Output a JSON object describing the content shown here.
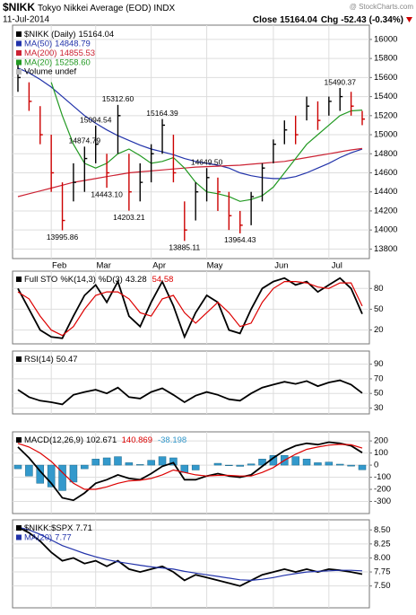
{
  "chart_data": [
    {
      "type": "ohlc",
      "symbol": "$NIKK",
      "title": "Tokyo Nikkei Average (EOD) INDX",
      "date": "11-Jul-2014",
      "source": "@ StockCharts.com",
      "close_label": "Close",
      "change_label": "Chg",
      "change": -52.43,
      "change_pct": "(-0.34%)",
      "categories": [
        null,
        null,
        null,
        "Feb",
        null,
        null,
        null,
        "Mar",
        null,
        null,
        null,
        null,
        "Apr",
        null,
        null,
        null,
        null,
        "May",
        null,
        null,
        null,
        null,
        null,
        "Jun",
        null,
        null,
        null,
        null,
        "Jul",
        null,
        null,
        null
      ],
      "series": [
        {
          "name": "$NIKK (Daily)",
          "up_color": "#000000",
          "down_color": "#cc0000",
          "close": [
            15600,
            15350,
            15000,
            14600,
            14100,
            14500,
            14750,
            14900,
            14600,
            15200,
            14400,
            14500,
            14800,
            15100,
            14600,
            14000,
            14400,
            14550,
            14400,
            14150,
            14050,
            14350,
            14650,
            14900,
            15050,
            15000,
            15300,
            15150,
            15350,
            15400,
            15300,
            15164.04
          ],
          "high": [
            15750,
            15550,
            15300,
            15000,
            14500,
            14700,
            14874.79,
            15094.54,
            14800,
            15312.6,
            14800,
            14700,
            14900,
            15164.39,
            15000,
            14300,
            14500,
            14649.5,
            14550,
            14400,
            14200,
            14400,
            14700,
            14950,
            15150,
            15200,
            15400,
            15350,
            15400,
            15490.37,
            15450,
            15250
          ],
          "low": [
            15450,
            15250,
            14900,
            14400,
            13995.86,
            14300,
            14400,
            14700,
            14443.1,
            14800,
            14203.21,
            14300,
            14500,
            14800,
            14500,
            13885.11,
            14100,
            14300,
            14200,
            14000,
            13964.43,
            14050,
            14300,
            14700,
            14900,
            14900,
            15150,
            15050,
            15200,
            15250,
            15200,
            15100
          ],
          "high_labels": [
            null,
            null,
            null,
            null,
            null,
            null,
            "14874.79",
            "15094.54",
            null,
            "15312.60",
            null,
            null,
            null,
            "15164.39",
            null,
            null,
            null,
            "14649.50",
            null,
            null,
            null,
            null,
            null,
            null,
            null,
            null,
            null,
            null,
            null,
            "15490.37",
            null,
            null
          ],
          "low_labels": [
            null,
            null,
            null,
            null,
            "13995.86",
            null,
            null,
            null,
            "14443.10",
            null,
            "14203.21",
            null,
            null,
            null,
            null,
            "13885.11",
            null,
            null,
            null,
            null,
            "13964.43",
            null,
            null,
            null,
            null,
            null,
            null,
            null,
            null,
            null,
            null,
            null
          ]
        }
      ],
      "overlays": [
        {
          "name": "MA(50)",
          "color": "#2233aa",
          "values": [
            15700,
            15650,
            15580,
            15500,
            15400,
            15300,
            15200,
            15120,
            15050,
            14990,
            14940,
            14890,
            14850,
            14820,
            14790,
            14750,
            14720,
            14700,
            14680,
            14650,
            14600,
            14570,
            14550,
            14540,
            14540,
            14560,
            14600,
            14650,
            14700,
            14760,
            14810,
            14848.79
          ]
        },
        {
          "name": "MA(200)",
          "color": "#cc2233",
          "values": [
            14350,
            14380,
            14410,
            14440,
            14470,
            14500,
            14520,
            14540,
            14560,
            14580,
            14600,
            14610,
            14620,
            14630,
            14640,
            14650,
            14660,
            14665,
            14670,
            14675,
            14680,
            14690,
            14700,
            14710,
            14720,
            14740,
            14760,
            14780,
            14800,
            14820,
            14840,
            14855.53
          ]
        },
        {
          "name": "MA(20)",
          "color": "#229922",
          "values": [
            null,
            null,
            null,
            15550,
            15200,
            14900,
            14700,
            14650,
            14700,
            14800,
            14850,
            14780,
            14700,
            14720,
            14760,
            14650,
            14500,
            14400,
            14380,
            14350,
            14300,
            14320,
            14360,
            14450,
            14600,
            14750,
            14900,
            15000,
            15100,
            15200,
            15250,
            15258.6
          ],
          "value_labels": [
            null,
            null,
            null,
            null,
            null,
            null,
            null,
            null,
            null,
            null,
            null,
            null,
            null,
            null,
            null,
            null,
            null,
            null,
            null,
            null,
            null,
            null,
            null,
            null,
            null,
            null,
            null,
            null,
            null,
            null,
            null,
            "15258.60"
          ]
        }
      ],
      "volume_label": "Volume undef",
      "ylim": [
        13700,
        16150
      ],
      "yticks": [
        13800,
        14000,
        14200,
        14400,
        14600,
        14800,
        15000,
        15200,
        15400,
        15600,
        15800,
        16000
      ],
      "grid": true
    },
    {
      "type": "line",
      "title": "Full STO",
      "legend": "inline",
      "series": [
        {
          "name": "%K(14,3)",
          "color": "#000000",
          "values": [
            80,
            50,
            20,
            10,
            8,
            40,
            70,
            85,
            60,
            90,
            40,
            25,
            60,
            90,
            55,
            10,
            45,
            70,
            60,
            20,
            15,
            50,
            80,
            90,
            95,
            85,
            90,
            75,
            85,
            95,
            80,
            43.28
          ]
        },
        {
          "name": "%D(3)",
          "color": "#dd0000",
          "values": [
            75,
            65,
            40,
            20,
            12,
            25,
            50,
            70,
            75,
            75,
            65,
            45,
            40,
            65,
            70,
            45,
            30,
            45,
            60,
            45,
            25,
            30,
            60,
            80,
            90,
            90,
            88,
            82,
            80,
            88,
            88,
            54.58
          ]
        }
      ],
      "ylim": [
        0,
        105
      ],
      "yticks": [
        20,
        50,
        80
      ],
      "grid": true
    },
    {
      "type": "line",
      "legend": "inline",
      "series": [
        {
          "name": "RSI(14)",
          "color": "#000000",
          "values": [
            55,
            45,
            40,
            38,
            35,
            48,
            52,
            55,
            50,
            58,
            45,
            43,
            52,
            57,
            48,
            38,
            47,
            52,
            48,
            42,
            40,
            50,
            58,
            62,
            66,
            63,
            67,
            60,
            65,
            68,
            62,
            50.47
          ]
        }
      ],
      "ylim": [
        22,
        108
      ],
      "yticks": [
        30,
        50,
        70,
        90
      ],
      "grid": true
    },
    {
      "type": "line",
      "title": "MACD(12,26,9)",
      "legend": "inline",
      "series": [
        {
          "color": "#000000",
          "values": [
            150,
            60,
            -50,
            -150,
            -270,
            -290,
            -230,
            -150,
            -120,
            -80,
            -110,
            -120,
            -70,
            -10,
            20,
            -120,
            -120,
            -90,
            -70,
            -90,
            -100,
            -80,
            -10,
            60,
            120,
            160,
            180,
            170,
            190,
            180,
            160,
            102.671
          ]
        },
        {
          "color": "#dd0000",
          "values": [
            180,
            150,
            100,
            30,
            -60,
            -150,
            -200,
            -200,
            -180,
            -150,
            -130,
            -125,
            -110,
            -80,
            -40,
            -60,
            -80,
            -90,
            -85,
            -85,
            -90,
            -90,
            -60,
            -20,
            40,
            90,
            130,
            150,
            165,
            172,
            168,
            140.869
          ]
        },
        {
          "color": "#3399cc",
          "style": "histogram",
          "values": [
            -30,
            -90,
            -150,
            -180,
            -210,
            -140,
            -30,
            50,
            60,
            70,
            20,
            5,
            40,
            70,
            60,
            -60,
            -40,
            0,
            15,
            -5,
            -10,
            10,
            50,
            80,
            80,
            70,
            50,
            20,
            25,
            8,
            -8,
            -38.198
          ]
        }
      ],
      "ylim": [
        -400,
        275
      ],
      "yticks": [
        -300,
        -200,
        -100,
        0,
        100,
        200
      ],
      "grid": true
    },
    {
      "type": "line",
      "legend": "stacked",
      "series": [
        {
          "name": "$NIKK:$SPX",
          "color": "#000000",
          "values": [
            8.55,
            8.45,
            8.3,
            8.1,
            7.95,
            8.0,
            7.9,
            7.95,
            7.85,
            7.95,
            7.8,
            7.75,
            7.8,
            7.85,
            7.75,
            7.6,
            7.7,
            7.65,
            7.6,
            7.55,
            7.5,
            7.6,
            7.7,
            7.75,
            7.8,
            7.75,
            7.8,
            7.75,
            7.8,
            7.78,
            7.75,
            7.71
          ]
        },
        {
          "name": "MA(20)",
          "color": "#2233aa",
          "values": [
            8.55,
            8.5,
            8.42,
            8.32,
            8.22,
            8.15,
            8.08,
            8.02,
            7.97,
            7.93,
            7.9,
            7.87,
            7.84,
            7.82,
            7.8,
            7.76,
            7.73,
            7.7,
            7.67,
            7.64,
            7.61,
            7.6,
            7.62,
            7.65,
            7.69,
            7.72,
            7.75,
            7.76,
            7.77,
            7.78,
            7.78,
            7.77
          ]
        }
      ],
      "ylim": [
        7.11,
        8.68
      ],
      "yticks": [
        {
          "value": 7.5,
          "label": "7.50"
        },
        {
          "value": 7.75,
          "label": "7.75"
        },
        {
          "value": 8.0,
          "label": "8.00"
        },
        {
          "value": 8.25,
          "label": "8.25"
        },
        {
          "value": 8.5,
          "label": "8.50"
        }
      ],
      "grid": true
    }
  ]
}
